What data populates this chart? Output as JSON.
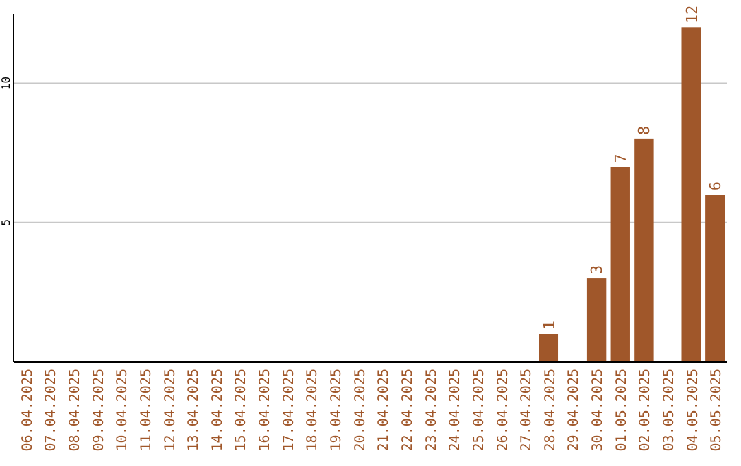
{
  "chart_data": {
    "type": "bar",
    "categories": [
      "06.04.2025",
      "07.04.2025",
      "08.04.2025",
      "09.04.2025",
      "10.04.2025",
      "11.04.2025",
      "12.04.2025",
      "13.04.2025",
      "14.04.2025",
      "15.04.2025",
      "16.04.2025",
      "17.04.2025",
      "18.04.2025",
      "19.04.2025",
      "20.04.2025",
      "21.04.2025",
      "22.04.2025",
      "23.04.2025",
      "24.04.2025",
      "25.04.2025",
      "26.04.2025",
      "27.04.2025",
      "28.04.2025",
      "29.04.2025",
      "30.04.2025",
      "01.05.2025",
      "02.05.2025",
      "03.05.2025",
      "04.05.2025",
      "05.05.2025"
    ],
    "values": [
      0,
      0,
      0,
      0,
      0,
      0,
      0,
      0,
      0,
      0,
      0,
      0,
      0,
      0,
      0,
      0,
      0,
      0,
      0,
      0,
      0,
      0,
      1,
      0,
      3,
      7,
      8,
      0,
      12,
      6
    ],
    "value_labels": [
      null,
      null,
      null,
      null,
      null,
      null,
      null,
      null,
      null,
      null,
      null,
      null,
      null,
      null,
      null,
      null,
      null,
      null,
      null,
      null,
      null,
      null,
      "1",
      null,
      "3",
      "7",
      "8",
      null,
      "12",
      "6"
    ],
    "color": "#a0572a",
    "ylim": [
      0,
      12.5
    ],
    "yticks": [
      5,
      10
    ],
    "grid": "y"
  }
}
